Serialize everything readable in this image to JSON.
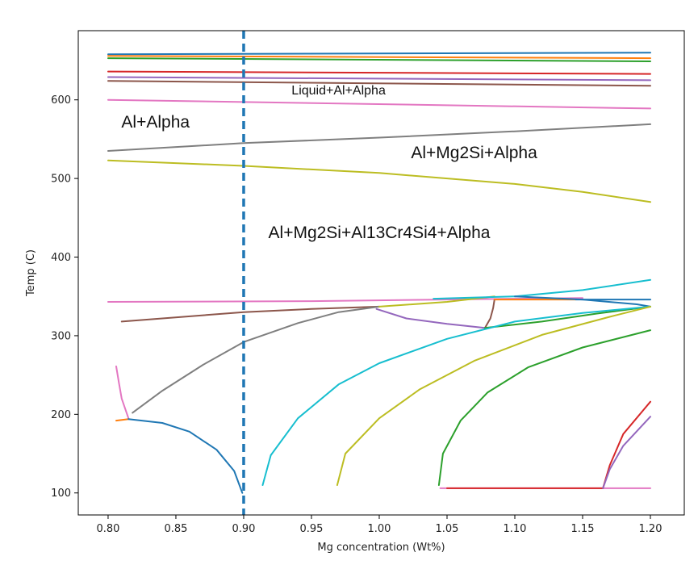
{
  "chart_data": {
    "type": "line",
    "xlabel": "Mg concentration (Wt%)",
    "ylabel": "Temp (C)",
    "xlim": [
      0.778,
      1.225
    ],
    "ylim": [
      72,
      688
    ],
    "xticks": [
      "0.80",
      "0.85",
      "0.90",
      "0.95",
      "1.00",
      "1.05",
      "1.10",
      "1.15",
      "1.20"
    ],
    "yticks": [
      "100",
      "200",
      "300",
      "400",
      "500",
      "600"
    ],
    "grid": false,
    "legend": "none",
    "annotations": [
      {
        "text": "Liquid+Al+Alpha",
        "x": 0.97,
        "y": 607,
        "size": "small"
      },
      {
        "text": "Al+Alpha",
        "x": 0.835,
        "y": 565,
        "size": "large"
      },
      {
        "text": "Al+Mg2Si+Alpha",
        "x": 1.07,
        "y": 526,
        "size": "large"
      },
      {
        "text": "Al+Mg2Si+Al13Cr4Si4+Alpha",
        "x": 1.0,
        "y": 424,
        "size": "large"
      }
    ],
    "vline": {
      "x": 0.9,
      "color": "#1f77b4",
      "style": "dashed"
    },
    "series": [
      {
        "color": "#1f77b4",
        "points": [
          [
            0.8,
            658
          ],
          [
            1.2,
            660
          ]
        ]
      },
      {
        "color": "#ff7f0e",
        "points": [
          [
            0.8,
            656
          ],
          [
            1.2,
            653
          ]
        ]
      },
      {
        "color": "#2ca02c",
        "points": [
          [
            0.8,
            653
          ],
          [
            1.2,
            649
          ]
        ]
      },
      {
        "color": "#d62728",
        "points": [
          [
            0.8,
            636
          ],
          [
            1.2,
            633
          ]
        ]
      },
      {
        "color": "#9467bd",
        "points": [
          [
            0.8,
            629
          ],
          [
            1.2,
            625
          ]
        ]
      },
      {
        "color": "#8c564b",
        "points": [
          [
            0.8,
            624
          ],
          [
            1.2,
            618
          ]
        ]
      },
      {
        "color": "#e377c2",
        "points": [
          [
            0.8,
            600
          ],
          [
            1.2,
            589
          ]
        ]
      },
      {
        "color": "#7f7f7f",
        "points": [
          [
            0.8,
            535
          ],
          [
            0.9,
            545
          ],
          [
            1.0,
            552
          ],
          [
            1.1,
            560
          ],
          [
            1.2,
            569
          ]
        ]
      },
      {
        "color": "#bcbd22",
        "points": [
          [
            0.8,
            523
          ],
          [
            0.9,
            516
          ],
          [
            1.0,
            507
          ],
          [
            1.1,
            493
          ],
          [
            1.15,
            483
          ],
          [
            1.2,
            470
          ]
        ]
      },
      {
        "color": "#e377c2",
        "points": [
          [
            0.8,
            343
          ],
          [
            0.95,
            344
          ],
          [
            1.1,
            347
          ],
          [
            1.15,
            348
          ]
        ]
      },
      {
        "color": "#8c564b",
        "points": [
          [
            0.81,
            318
          ],
          [
            0.9,
            330
          ],
          [
            0.95,
            334
          ],
          [
            1.0,
            337
          ]
        ]
      },
      {
        "color": "#7f7f7f",
        "points": [
          [
            0.818,
            202
          ],
          [
            0.84,
            230
          ],
          [
            0.87,
            263
          ],
          [
            0.9,
            292
          ],
          [
            0.94,
            316
          ],
          [
            0.97,
            330
          ],
          [
            1.0,
            337
          ]
        ]
      },
      {
        "color": "#bcbd22",
        "points": [
          [
            1.0,
            337
          ],
          [
            1.05,
            343
          ],
          [
            1.085,
            350
          ]
        ]
      },
      {
        "color": "#17becf",
        "points": [
          [
            1.04,
            347
          ],
          [
            1.1,
            350
          ],
          [
            1.15,
            358
          ],
          [
            1.2,
            371
          ]
        ]
      },
      {
        "color": "#9467bd",
        "points": [
          [
            0.998,
            334
          ],
          [
            1.02,
            322
          ],
          [
            1.05,
            315
          ],
          [
            1.078,
            310
          ]
        ]
      },
      {
        "color": "#8c564b",
        "points": [
          [
            1.078,
            310
          ],
          [
            1.082,
            322
          ],
          [
            1.084,
            335
          ],
          [
            1.085,
            346
          ]
        ]
      },
      {
        "color": "#ff7f0e",
        "points": [
          [
            1.085,
            346
          ],
          [
            1.11,
            346
          ],
          [
            1.145,
            346
          ]
        ]
      },
      {
        "color": "#1f77b4",
        "points": [
          [
            1.145,
            346
          ],
          [
            1.2,
            346
          ]
        ]
      },
      {
        "color": "#1f77b4",
        "points": [
          [
            1.1,
            350
          ],
          [
            1.15,
            346
          ],
          [
            1.19,
            340
          ],
          [
            1.2,
            337
          ]
        ]
      },
      {
        "color": "#2ca02c",
        "points": [
          [
            1.078,
            310
          ],
          [
            1.12,
            318
          ],
          [
            1.16,
            328
          ],
          [
            1.2,
            337
          ]
        ]
      },
      {
        "color": "#e377c2",
        "points": [
          [
            0.806,
            261
          ],
          [
            0.808,
            240
          ],
          [
            0.81,
            220
          ],
          [
            0.815,
            195
          ]
        ]
      },
      {
        "color": "#ff7f0e",
        "points": [
          [
            0.806,
            192
          ],
          [
            0.815,
            194
          ]
        ]
      },
      {
        "color": "#1f77b4",
        "points": [
          [
            0.815,
            194
          ],
          [
            0.84,
            189
          ],
          [
            0.86,
            178
          ],
          [
            0.88,
            155
          ],
          [
            0.893,
            128
          ],
          [
            0.899,
            100
          ]
        ]
      },
      {
        "color": "#17becf",
        "points": [
          [
            0.914,
            110
          ],
          [
            0.92,
            148
          ],
          [
            0.94,
            195
          ],
          [
            0.97,
            238
          ],
          [
            1.0,
            265
          ],
          [
            1.05,
            296
          ],
          [
            1.1,
            318
          ],
          [
            1.15,
            329
          ],
          [
            1.2,
            337
          ]
        ]
      },
      {
        "color": "#bcbd22",
        "points": [
          [
            0.969,
            110
          ],
          [
            0.975,
            150
          ],
          [
            1.0,
            195
          ],
          [
            1.03,
            232
          ],
          [
            1.07,
            268
          ],
          [
            1.12,
            301
          ],
          [
            1.17,
            324
          ],
          [
            1.2,
            337
          ]
        ]
      },
      {
        "color": "#2ca02c",
        "points": [
          [
            1.044,
            110
          ],
          [
            1.047,
            150
          ],
          [
            1.06,
            192
          ],
          [
            1.08,
            228
          ],
          [
            1.11,
            260
          ],
          [
            1.15,
            285
          ],
          [
            1.2,
            307
          ]
        ]
      },
      {
        "color": "#e377c2",
        "points": [
          [
            1.045,
            106
          ],
          [
            1.2,
            106
          ]
        ]
      },
      {
        "color": "#d62728",
        "points": [
          [
            1.05,
            106
          ],
          [
            1.1,
            106
          ],
          [
            1.165,
            106
          ]
        ]
      },
      {
        "color": "#d62728",
        "points": [
          [
            1.165,
            106
          ],
          [
            1.17,
            135
          ],
          [
            1.18,
            175
          ],
          [
            1.2,
            216
          ]
        ]
      },
      {
        "color": "#9467bd",
        "points": [
          [
            1.165,
            106
          ],
          [
            1.17,
            130
          ],
          [
            1.18,
            160
          ],
          [
            1.2,
            197
          ]
        ]
      }
    ]
  }
}
